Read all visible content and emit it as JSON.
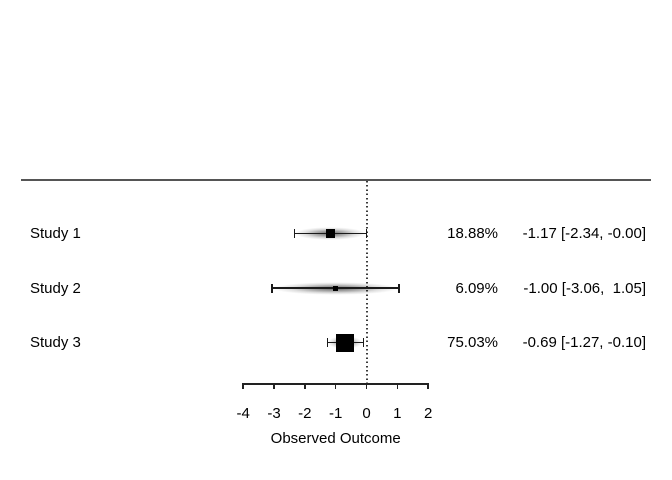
{
  "chart_data": {
    "type": "forest",
    "title": "",
    "xlabel": "Observed Outcome",
    "x_ticks": [
      -4,
      -3,
      -2,
      -1,
      0,
      1,
      2
    ],
    "x_range": [
      -4,
      2
    ],
    "reference_line_x": 0,
    "grid": false,
    "legend": false,
    "studies": [
      {
        "label": "Study 1",
        "weight_pct": 18.88,
        "weight_label": "18.88%",
        "estimate": -1.17,
        "ci_lower": -2.34,
        "ci_upper": -0.0,
        "annotation": "-1.17 [-2.34, -0.00]"
      },
      {
        "label": "Study 2",
        "weight_pct": 6.09,
        "weight_label": "6.09%",
        "estimate": -1.0,
        "ci_lower": -3.06,
        "ci_upper": 1.05,
        "annotation": "-1.00 [-3.06,  1.05]"
      },
      {
        "label": "Study 3",
        "weight_pct": 75.03,
        "weight_label": "75.03%",
        "estimate": -0.69,
        "ci_lower": -1.27,
        "ci_upper": -0.1,
        "annotation": "-0.69 [-1.27, -0.10]"
      }
    ],
    "colors": {
      "marker": "#000000",
      "ci_line": "#1a1a1a",
      "separator": "#555555",
      "reference_line": "#3a3a3a",
      "text": "#000000",
      "background": "#ffffff"
    }
  }
}
